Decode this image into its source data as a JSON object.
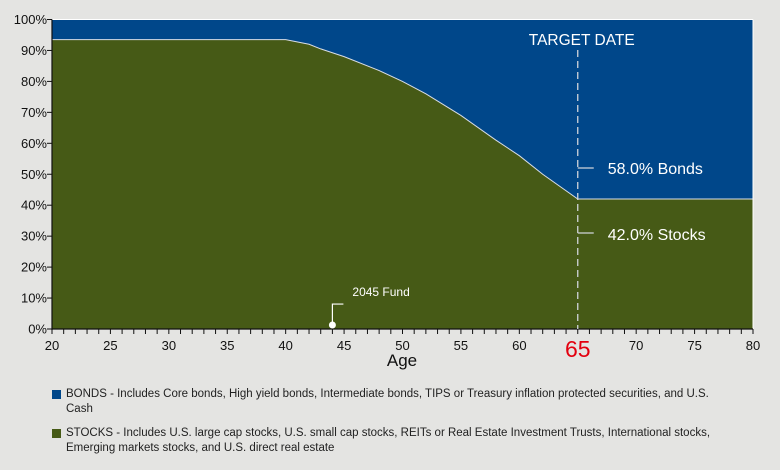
{
  "chart_data": {
    "type": "area",
    "xlabel": "Age",
    "ylabel": "",
    "xlim": [
      20,
      80
    ],
    "ylim": [
      0,
      100
    ],
    "xticks": [
      20,
      25,
      30,
      35,
      40,
      45,
      50,
      55,
      60,
      65,
      70,
      75,
      80
    ],
    "yticks": [
      "0%",
      "10%",
      "20%",
      "30%",
      "40%",
      "50%",
      "60%",
      "70%",
      "80%",
      "90%",
      "100%"
    ],
    "highlight_tick": "65",
    "grid": false,
    "stacked": true,
    "x": [
      20,
      40,
      42,
      43,
      45,
      48,
      50,
      52,
      55,
      58,
      60,
      62,
      65,
      80
    ],
    "series": [
      {
        "name": "STOCKS",
        "color": "#465a16",
        "values": [
          93.5,
          93.5,
          92,
          90.5,
          88,
          83.5,
          80,
          76,
          69,
          61,
          56,
          50,
          42,
          42
        ]
      },
      {
        "name": "BONDS",
        "color": "#00478a",
        "values": [
          6.5,
          6.5,
          8,
          9.5,
          12,
          16.5,
          20,
          24,
          31,
          39,
          44,
          50,
          58,
          58
        ]
      }
    ],
    "annotations": {
      "target_date": {
        "label": "TARGET DATE",
        "x": 65
      },
      "bonds_label": "58.0% Bonds",
      "stocks_label": "42.0% Stocks",
      "fund_marker": {
        "label": "2045 Fund",
        "x": 44
      }
    },
    "legend": {
      "placement": "bottom",
      "items": [
        {
          "color": "#00478a",
          "text": "BONDS - Includes Core bonds, High yield bonds, Intermediate bonds, TIPS or Treasury inflation protected securities, and U.S. Cash"
        },
        {
          "color": "#465a16",
          "text": "STOCKS - Includes U.S. large cap stocks, U.S. small cap stocks, REITs or Real Estate Investment Trusts, International stocks, Emerging markets stocks, and U.S. direct real estate"
        }
      ]
    },
    "highlight_color": "#e3000f"
  }
}
